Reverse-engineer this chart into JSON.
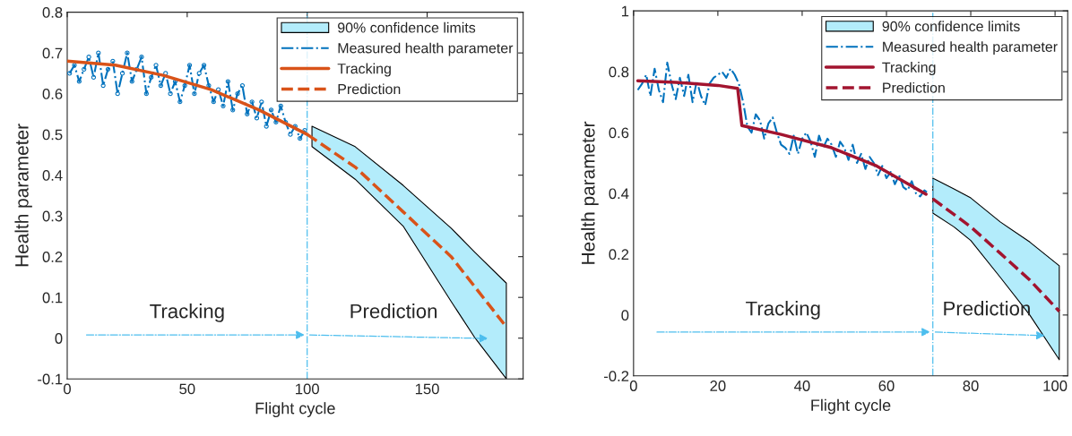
{
  "chart_data": [
    {
      "type": "line",
      "xlabel": "Flight cycle",
      "ylabel": "Health parameter",
      "xlim": [
        0,
        190
      ],
      "ylim": [
        -0.1,
        0.8
      ],
      "xticks": [
        0,
        50,
        100,
        150
      ],
      "yticks": [
        -0.1,
        0,
        0.1,
        0.2,
        0.3,
        0.4,
        0.5,
        0.6,
        0.7,
        0.8
      ],
      "grid": false,
      "legend": "top right",
      "annotations": [
        "Tracking",
        "Prediction"
      ],
      "ref_lines": [
        {
          "axis": "x",
          "value": 100,
          "color": "#4dbeee",
          "line_style": "dashdot"
        }
      ],
      "series": [
        {
          "name": "90% confidence limits",
          "color": "#b3ecfb",
          "x": [
            102,
            120,
            140,
            160,
            170,
            183
          ],
          "values": [
            null,
            null,
            null,
            null,
            null,
            null
          ],
          "lower": [
            0.47,
            0.39,
            0.275,
            0.09,
            0.0,
            -0.1
          ],
          "upper": [
            0.52,
            0.47,
            0.375,
            0.27,
            0.21,
            0.135
          ]
        },
        {
          "name": "Measured health parameter",
          "color": "#0072bd",
          "line_style": "dashdot",
          "marker": "circle",
          "x": [
            1,
            3,
            5,
            7,
            9,
            11,
            13,
            15,
            17,
            19,
            21,
            23,
            25,
            27,
            29,
            31,
            33,
            35,
            37,
            39,
            41,
            43,
            45,
            47,
            49,
            51,
            53,
            55,
            57,
            59,
            61,
            63,
            65,
            67,
            69,
            71,
            73,
            75,
            77,
            79,
            81,
            83,
            85,
            87,
            89,
            91,
            93,
            95,
            97,
            99
          ],
          "values": [
            0.65,
            0.67,
            0.63,
            0.66,
            0.69,
            0.64,
            0.7,
            0.62,
            0.66,
            0.68,
            0.6,
            0.65,
            0.7,
            0.63,
            0.66,
            0.69,
            0.6,
            0.64,
            0.67,
            0.62,
            0.65,
            0.6,
            0.63,
            0.58,
            0.62,
            0.67,
            0.6,
            0.65,
            0.67,
            0.62,
            0.58,
            0.61,
            0.57,
            0.63,
            0.56,
            0.6,
            0.62,
            0.55,
            0.58,
            0.54,
            0.58,
            0.52,
            0.56,
            0.53,
            0.57,
            0.53,
            0.5,
            0.52,
            0.49,
            0.51
          ]
        },
        {
          "name": "Tracking",
          "color": "#d95319",
          "line_style": "solid",
          "x": [
            0,
            20,
            40,
            60,
            80,
            100
          ],
          "values": [
            0.68,
            0.67,
            0.645,
            0.61,
            0.56,
            0.5
          ]
        },
        {
          "name": "Prediction",
          "color": "#d95319",
          "line_style": "dashed",
          "x": [
            100,
            120,
            140,
            160,
            182
          ],
          "values": [
            0.5,
            0.42,
            0.31,
            0.2,
            0.035
          ]
        }
      ]
    },
    {
      "type": "line",
      "xlabel": "Flight cycle",
      "ylabel": "Health parameter",
      "xlim": [
        0,
        103
      ],
      "ylim": [
        -0.2,
        1
      ],
      "xticks": [
        0,
        20,
        40,
        60,
        80,
        100
      ],
      "yticks": [
        -0.2,
        0,
        0.2,
        0.4,
        0.6,
        0.8,
        1
      ],
      "grid": false,
      "legend": "top right",
      "annotations": [
        "Tracking",
        "Prediction"
      ],
      "ref_lines": [
        {
          "axis": "x",
          "value": 71,
          "color": "#4dbeee",
          "line_style": "dashdot"
        }
      ],
      "series": [
        {
          "name": "90% confidence limits",
          "color": "#b3ecfb",
          "x": [
            71,
            76,
            80,
            87,
            94,
            101
          ],
          "values": [
            null,
            null,
            null,
            null,
            null,
            null
          ],
          "lower": [
            0.335,
            0.29,
            0.245,
            0.124,
            0.0,
            -0.147
          ],
          "upper": [
            0.45,
            0.415,
            0.385,
            0.306,
            0.24,
            0.162
          ]
        },
        {
          "name": "Measured health parameter",
          "color": "#0072bd",
          "line_style": "dashdot",
          "x": [
            1,
            2,
            3,
            4,
            5,
            6,
            7,
            8,
            9,
            10,
            11,
            12,
            13,
            14,
            15,
            16,
            17,
            18,
            19,
            20,
            21,
            22,
            23,
            24,
            25,
            26,
            27,
            28,
            29,
            30,
            31,
            32,
            33,
            34,
            35,
            36,
            37,
            38,
            39,
            40,
            41,
            42,
            43,
            44,
            45,
            46,
            47,
            48,
            49,
            50,
            51,
            52,
            53,
            54,
            55,
            56,
            57,
            58,
            59,
            60,
            61,
            62,
            63,
            64,
            65,
            66,
            67,
            68,
            69,
            70
          ],
          "values": [
            0.74,
            0.76,
            0.79,
            0.72,
            0.81,
            0.74,
            0.7,
            0.83,
            0.76,
            0.71,
            0.78,
            0.72,
            0.79,
            0.7,
            0.77,
            0.72,
            0.69,
            0.76,
            0.78,
            0.79,
            0.8,
            0.78,
            0.81,
            0.79,
            0.76,
            0.7,
            0.62,
            0.6,
            0.66,
            0.64,
            0.58,
            0.63,
            0.65,
            0.6,
            0.56,
            0.55,
            0.53,
            0.59,
            0.53,
            0.58,
            0.6,
            0.57,
            0.52,
            0.59,
            0.55,
            0.58,
            0.56,
            0.52,
            0.57,
            0.55,
            0.51,
            0.56,
            0.5,
            0.53,
            0.48,
            0.52,
            0.5,
            0.46,
            0.49,
            0.45,
            0.47,
            0.43,
            0.46,
            0.42,
            0.41,
            0.44,
            0.4,
            0.39,
            0.41,
            0.4
          ]
        },
        {
          "name": "Tracking",
          "color": "#a2142f",
          "line_style": "solid",
          "x": [
            1,
            10,
            20,
            24.7,
            25.7,
            35,
            47,
            57.7,
            69.4
          ],
          "values": [
            0.77,
            0.765,
            0.755,
            0.745,
            0.623,
            0.594,
            0.55,
            0.49,
            0.397
          ]
        },
        {
          "name": "Prediction",
          "color": "#a2142f",
          "line_style": "dashed",
          "x": [
            71,
            80,
            87,
            94,
            101
          ],
          "values": [
            0.382,
            0.29,
            0.203,
            0.115,
            0.012
          ]
        }
      ]
    }
  ]
}
